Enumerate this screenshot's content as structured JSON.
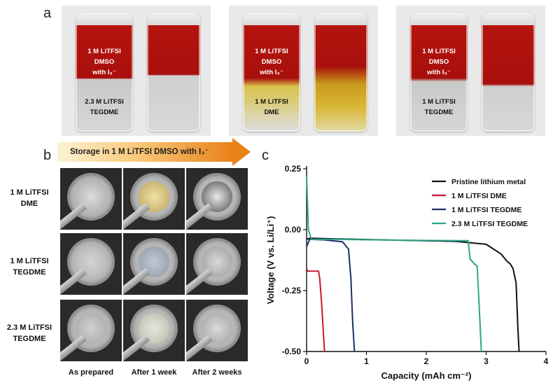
{
  "panel_labels": {
    "a": "a",
    "b": "b",
    "c": "c"
  },
  "panel_a": {
    "vial_text": [
      {
        "top": [
          "1 M LiTFSI",
          "DMSO",
          "with I₃⁻"
        ],
        "bottom": [
          "2.3 M LiTFSI",
          "TEGDME"
        ]
      },
      {
        "top": [
          "1 M LiTFSI",
          "DMSO",
          "with I₃⁻"
        ],
        "bottom": [
          "1 M LiTFSI",
          "DME"
        ]
      },
      {
        "top": [
          "1 M LiTFSI",
          "DMSO",
          "with I₃⁻"
        ],
        "bottom": [
          "1 M LiTFSI",
          "TEGDME"
        ]
      }
    ]
  },
  "panel_b": {
    "arrow_text": "Storage in 1 M LiTFSI DMSO with I₃⁻",
    "row_labels": [
      [
        "1 M LiTFSI",
        "DME"
      ],
      [
        "1 M LiTFSI",
        "TEGDME"
      ],
      [
        "2.3 M LiTFSI",
        "TEGDME"
      ]
    ],
    "col_labels": [
      "As prepared",
      "After 1 week",
      "After 2 weeks"
    ]
  },
  "chart_data": {
    "type": "line",
    "xlabel": "Capacity (mAh cm⁻²)",
    "ylabel": "Voltage (V vs. Li/Li⁺)",
    "xlim": [
      0,
      4
    ],
    "ylim": [
      -0.5,
      0.25
    ],
    "xticks": [
      "0",
      "1",
      "2",
      "3",
      "4"
    ],
    "yticks": [
      "-0.50",
      "-0.25",
      "0.00",
      "0.25"
    ],
    "legend_position": "top-right",
    "series": [
      {
        "name": "Pristine lithium metal",
        "color": "#111111",
        "x": [
          0.0,
          0.05,
          0.5,
          1.5,
          2.5,
          3.0,
          3.25,
          3.3,
          3.35,
          3.4,
          3.45,
          3.5,
          3.53,
          3.55
        ],
        "y": [
          -0.04,
          -0.035,
          -0.038,
          -0.043,
          -0.048,
          -0.06,
          -0.1,
          -0.115,
          -0.13,
          -0.14,
          -0.16,
          -0.22,
          -0.4,
          -0.5
        ]
      },
      {
        "name": "1 M LiTFSI DME",
        "color": "#c8182c",
        "x": [
          0.0,
          0.02,
          0.2,
          0.22,
          0.25,
          0.28,
          0.3
        ],
        "y": [
          -0.16,
          -0.17,
          -0.17,
          -0.2,
          -0.3,
          -0.42,
          -0.5
        ]
      },
      {
        "name": "1 M LiTFSI TEGDME",
        "color": "#1a2f6a",
        "x": [
          0.0,
          0.05,
          0.3,
          0.6,
          0.7,
          0.74,
          0.77,
          0.8
        ],
        "y": [
          -0.07,
          -0.04,
          -0.042,
          -0.05,
          -0.08,
          -0.2,
          -0.38,
          -0.5
        ]
      },
      {
        "name": "2.3 M LiTFSI TEGDME",
        "color": "#2fa58c",
        "x": [
          0.0,
          0.03,
          0.08,
          0.5,
          1.5,
          2.5,
          2.7,
          2.73,
          2.8,
          2.85,
          2.9,
          2.92
        ],
        "y": [
          0.22,
          0.0,
          -0.04,
          -0.04,
          -0.043,
          -0.045,
          -0.045,
          -0.12,
          -0.14,
          -0.15,
          -0.4,
          -0.5
        ]
      }
    ]
  }
}
